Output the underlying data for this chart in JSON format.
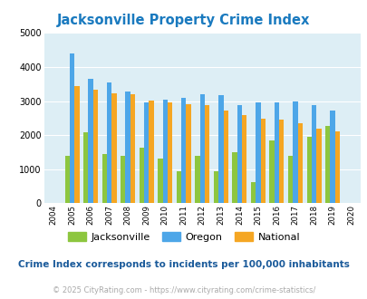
{
  "title": "Jacksonville Property Crime Index",
  "years": [
    2004,
    2005,
    2006,
    2007,
    2008,
    2009,
    2010,
    2011,
    2012,
    2013,
    2014,
    2015,
    2016,
    2017,
    2018,
    2019,
    2020
  ],
  "jacksonville": [
    null,
    1380,
    2080,
    1440,
    1400,
    1620,
    1300,
    950,
    1400,
    950,
    1500,
    620,
    1850,
    1400,
    1960,
    2280,
    null
  ],
  "oregon": [
    null,
    4400,
    3650,
    3540,
    3280,
    2960,
    3040,
    3100,
    3200,
    3180,
    2870,
    2970,
    2960,
    2980,
    2890,
    2720,
    null
  ],
  "national": [
    null,
    3440,
    3330,
    3230,
    3200,
    3010,
    2960,
    2920,
    2880,
    2720,
    2590,
    2490,
    2450,
    2360,
    2200,
    2110,
    null
  ],
  "jacksonville_color": "#8dc63f",
  "oregon_color": "#4da6e8",
  "national_color": "#f5a623",
  "plot_bg": "#ddeef5",
  "ylim": [
    0,
    5000
  ],
  "yticks": [
    0,
    1000,
    2000,
    3000,
    4000,
    5000
  ],
  "all_tick_years": [
    2004,
    2005,
    2006,
    2007,
    2008,
    2009,
    2010,
    2011,
    2012,
    2013,
    2014,
    2015,
    2016,
    2017,
    2018,
    2019,
    2020
  ],
  "footnote": "Crime Index corresponds to incidents per 100,000 inhabitants",
  "copyright": "© 2025 CityRating.com - https://www.cityrating.com/crime-statistics/",
  "title_color": "#1a7abf",
  "footnote_color": "#1a5a9a",
  "copyright_color": "#aaaaaa",
  "bar_width": 0.26
}
